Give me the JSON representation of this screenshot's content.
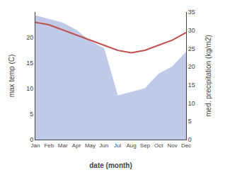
{
  "chart_data": {
    "type": "line",
    "categories": [
      "Jan",
      "Feb",
      "Mar",
      "Apr",
      "May",
      "Jun",
      "Jul",
      "Aug",
      "Sep",
      "Oct",
      "Nov",
      "Dec"
    ],
    "series": [
      {
        "type": "area",
        "color": "#bfc9e8",
        "axis": "y2",
        "values": [
          34,
          33,
          32,
          30,
          27,
          25,
          12,
          13,
          14,
          18,
          20,
          24
        ]
      },
      {
        "type": "line",
        "color": "#c0504d",
        "values": [
          23.0,
          22.5,
          21.5,
          20.5,
          19.5,
          18.5,
          17.5,
          17.0,
          17.5,
          18.5,
          19.5,
          21.0
        ]
      }
    ],
    "xlabel": "date (month)",
    "ylabel": "max temp (C)",
    "y2label": "med. precipitation (kg/m2)",
    "ylim": [
      0,
      25
    ],
    "yticks": [
      0,
      5,
      10,
      15,
      20
    ],
    "y2lim": [
      0,
      35
    ],
    "y2ticks": [
      0,
      5,
      10,
      15,
      20,
      25,
      30,
      35
    ],
    "grid": false
  }
}
